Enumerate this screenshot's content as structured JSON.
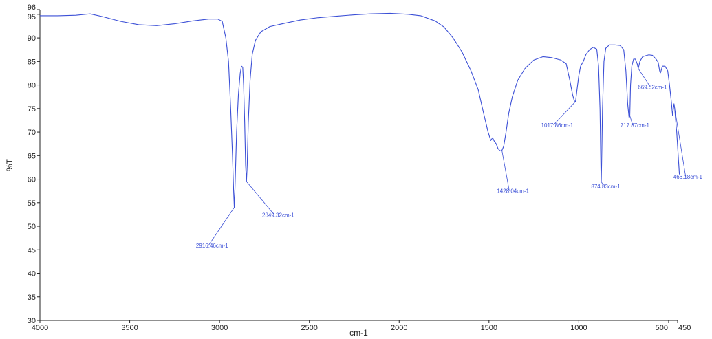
{
  "chart_data": {
    "type": "line",
    "title": "",
    "xlabel": "cm-1",
    "ylabel": "%T",
    "xlim": [
      4000,
      450
    ],
    "ylim": [
      30,
      96
    ],
    "x_reversed": true,
    "grid": false,
    "legend": "none",
    "x_ticks": [
      {
        "value": 4000,
        "label": "4000"
      },
      {
        "value": 3500,
        "label": "3500"
      },
      {
        "value": 3000,
        "label": "3000"
      },
      {
        "value": 2500,
        "label": "2500"
      },
      {
        "value": 2000,
        "label": "2000"
      },
      {
        "value": 1500,
        "label": "1500"
      },
      {
        "value": 1000,
        "label": "1000"
      },
      {
        "value": 500,
        "label": "500"
      },
      {
        "value": 450,
        "label": "450"
      }
    ],
    "y_ticks": [
      {
        "value": 30,
        "label": "30"
      },
      {
        "value": 35,
        "label": "35"
      },
      {
        "value": 40,
        "label": "40"
      },
      {
        "value": 45,
        "label": "45"
      },
      {
        "value": 50,
        "label": "50"
      },
      {
        "value": 55,
        "label": "55"
      },
      {
        "value": 60,
        "label": "60"
      },
      {
        "value": 65,
        "label": "65"
      },
      {
        "value": 70,
        "label": "70"
      },
      {
        "value": 75,
        "label": "75"
      },
      {
        "value": 80,
        "label": "80"
      },
      {
        "value": 85,
        "label": "85"
      },
      {
        "value": 90,
        "label": "90"
      },
      {
        "value": 95,
        "label": "95"
      },
      {
        "value": 96,
        "label": "96"
      }
    ],
    "line_color": "#3b4fd6",
    "series": [
      {
        "points": [
          [
            4000,
            94.7
          ],
          [
            3900,
            94.7
          ],
          [
            3800,
            94.8
          ],
          [
            3720,
            95.1
          ],
          [
            3650,
            94.5
          ],
          [
            3550,
            93.5
          ],
          [
            3450,
            92.8
          ],
          [
            3350,
            92.6
          ],
          [
            3250,
            93.0
          ],
          [
            3150,
            93.6
          ],
          [
            3060,
            94.0
          ],
          [
            3010,
            94.0
          ],
          [
            2985,
            93.5
          ],
          [
            2965,
            90.0
          ],
          [
            2950,
            85.0
          ],
          [
            2938,
            75.0
          ],
          [
            2928,
            65.0
          ],
          [
            2922,
            58.0
          ],
          [
            2918,
            54.0
          ],
          [
            2914,
            58.0
          ],
          [
            2905,
            70.0
          ],
          [
            2895,
            78.0
          ],
          [
            2885,
            82.5
          ],
          [
            2878,
            84.0
          ],
          [
            2871,
            83.8
          ],
          [
            2866,
            80.0
          ],
          [
            2860,
            72.0
          ],
          [
            2855,
            63.0
          ],
          [
            2850,
            59.5
          ],
          [
            2846,
            63.0
          ],
          [
            2840,
            72.0
          ],
          [
            2830,
            81.0
          ],
          [
            2818,
            86.5
          ],
          [
            2800,
            89.5
          ],
          [
            2770,
            91.3
          ],
          [
            2720,
            92.4
          ],
          [
            2650,
            93.0
          ],
          [
            2550,
            93.8
          ],
          [
            2450,
            94.3
          ],
          [
            2350,
            94.6
          ],
          [
            2250,
            94.9
          ],
          [
            2160,
            95.1
          ],
          [
            2050,
            95.2
          ],
          [
            1950,
            95.0
          ],
          [
            1880,
            94.7
          ],
          [
            1800,
            93.6
          ],
          [
            1750,
            92.3
          ],
          [
            1700,
            90.0
          ],
          [
            1650,
            87.0
          ],
          [
            1600,
            83.0
          ],
          [
            1560,
            79.0
          ],
          [
            1530,
            74.0
          ],
          [
            1505,
            70.0
          ],
          [
            1490,
            68.2
          ],
          [
            1480,
            68.8
          ],
          [
            1470,
            68.0
          ],
          [
            1460,
            67.5
          ],
          [
            1450,
            66.5
          ],
          [
            1438,
            66.0
          ],
          [
            1428,
            66.1
          ],
          [
            1418,
            67.0
          ],
          [
            1405,
            70.0
          ],
          [
            1390,
            74.0
          ],
          [
            1370,
            77.5
          ],
          [
            1340,
            81.0
          ],
          [
            1300,
            83.5
          ],
          [
            1250,
            85.3
          ],
          [
            1200,
            86.0
          ],
          [
            1150,
            85.8
          ],
          [
            1100,
            85.3
          ],
          [
            1070,
            84.5
          ],
          [
            1050,
            81.0
          ],
          [
            1035,
            78.0
          ],
          [
            1025,
            76.6
          ],
          [
            1018,
            76.5
          ],
          [
            1010,
            79.0
          ],
          [
            1000,
            82.0
          ],
          [
            990,
            84.0
          ],
          [
            975,
            85.0
          ],
          [
            960,
            86.5
          ],
          [
            940,
            87.5
          ],
          [
            920,
            88.0
          ],
          [
            900,
            87.6
          ],
          [
            890,
            84.0
          ],
          [
            882,
            75.0
          ],
          [
            877,
            62.0
          ],
          [
            875,
            59.5
          ],
          [
            873,
            63.0
          ],
          [
            868,
            75.0
          ],
          [
            860,
            85.0
          ],
          [
            850,
            87.8
          ],
          [
            830,
            88.5
          ],
          [
            800,
            88.5
          ],
          [
            770,
            88.4
          ],
          [
            750,
            87.5
          ],
          [
            738,
            83.0
          ],
          [
            728,
            76.0
          ],
          [
            720,
            73.0
          ],
          [
            716,
            73.5
          ],
          [
            712,
            80.0
          ],
          [
            705,
            84.0
          ],
          [
            695,
            85.5
          ],
          [
            685,
            85.5
          ],
          [
            675,
            84.5
          ],
          [
            669,
            83.5
          ],
          [
            660,
            85.0
          ],
          [
            645,
            86.0
          ],
          [
            630,
            86.2
          ],
          [
            610,
            86.4
          ],
          [
            590,
            86.3
          ],
          [
            570,
            85.5
          ],
          [
            558,
            84.8
          ],
          [
            550,
            83.0
          ],
          [
            545,
            82.6
          ],
          [
            535,
            84.0
          ],
          [
            520,
            84.0
          ],
          [
            505,
            83.0
          ],
          [
            495,
            80.0
          ],
          [
            485,
            76.5
          ],
          [
            478,
            73.5
          ],
          [
            475,
            74.5
          ],
          [
            470,
            76.0
          ],
          [
            466,
            75.0
          ],
          [
            462,
            73.0
          ],
          [
            455,
            70.0
          ],
          [
            450,
            67.0
          ],
          [
            445,
            64.0
          ],
          [
            440,
            61.0
          ]
        ]
      }
    ],
    "annotations": [
      {
        "text": "2916.46cm-1",
        "x": 2918,
        "y": 54.0,
        "label_x": 3062,
        "label_y": 45.9
      },
      {
        "text": "2849.32cm-1",
        "x": 2850,
        "y": 59.5,
        "label_x": 2694,
        "label_y": 52.4
      },
      {
        "text": "1428.04cm-1",
        "x": 1428,
        "y": 66.1,
        "label_x": 1387,
        "label_y": 57.5
      },
      {
        "text": "1017.86cm-1",
        "x": 1018,
        "y": 76.5,
        "label_x": 1141,
        "label_y": 71.5
      },
      {
        "text": "874.83cm-1",
        "x": 875,
        "y": 59.5,
        "label_x": 862,
        "label_y": 58.5
      },
      {
        "text": "717.87cm-1",
        "x": 716,
        "y": 73.5,
        "label_x": 700,
        "label_y": 71.5
      },
      {
        "text": "669.32cm-1",
        "x": 669,
        "y": 83.5,
        "label_x": 602,
        "label_y": 79.6
      },
      {
        "text": "466.18cm-1",
        "x": 466,
        "y": 75.0,
        "label_x": 405,
        "label_y": 60.5
      }
    ]
  }
}
